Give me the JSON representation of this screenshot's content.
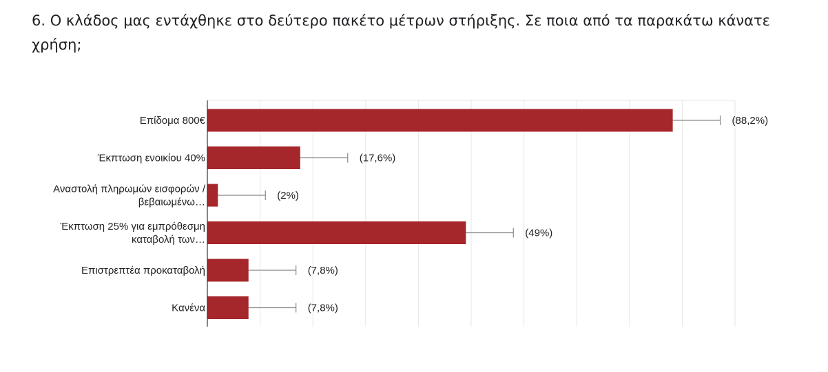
{
  "question": {
    "title": "6. Ο κλάδος μας εντάχθηκε στο δεύτερο πακέτο μέτρων στήριξης. Σε ποια από τα παρακάτω κάνατε χρήση;"
  },
  "colors": {
    "bar": "#a5262b",
    "grid": "#e6e6e6",
    "axis": "#333333",
    "errorbar": "#888888",
    "text": "#222222"
  },
  "chart_data": {
    "type": "bar",
    "orientation": "horizontal",
    "categories": [
      [
        "Επίδομα 800€"
      ],
      [
        "Έκπτωση ενοικίου 40%"
      ],
      [
        "Αναστολή πληρωμών εισφορών /",
        "βεβαιωμένω…"
      ],
      [
        "Έκπτωση 25% για εμπρόθεσμη",
        "καταβολή των…"
      ],
      [
        "Επιστρεπτέα προκαταβολή"
      ],
      [
        "Κανένα"
      ]
    ],
    "values": [
      88.2,
      17.6,
      2,
      49,
      7.8,
      7.8
    ],
    "value_labels": [
      "(88,2%)",
      "(17,6%)",
      "(2%)",
      "(49%)",
      "(7,8%)",
      "(7,8%)"
    ],
    "xlim": [
      0,
      100
    ],
    "grid": true,
    "title": "",
    "xlabel": "",
    "ylabel": ""
  }
}
